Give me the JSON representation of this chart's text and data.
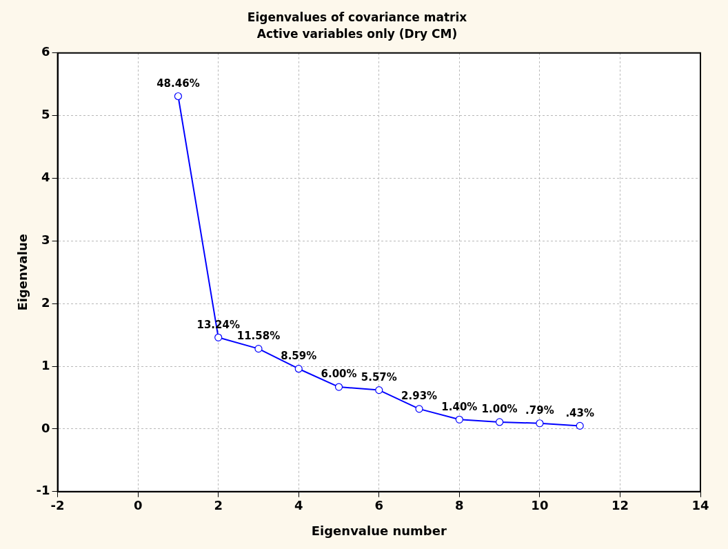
{
  "chart_data": {
    "type": "line",
    "title": "Eigenvalues of covariance matrix",
    "subtitle": "Active variables only (Dry CM)",
    "xlabel": "Eigenvalue number",
    "ylabel": "Eigenvalue",
    "x": [
      1,
      2,
      3,
      4,
      5,
      6,
      7,
      8,
      9,
      10,
      11
    ],
    "series": [
      {
        "color": "#0000ff",
        "values": [
          5.31,
          1.46,
          1.28,
          0.96,
          0.67,
          0.62,
          0.32,
          0.15,
          0.11,
          0.09,
          0.05
        ]
      }
    ],
    "annotations": [
      {
        "text": "48.46%",
        "x": 1,
        "y": 5.31
      },
      {
        "text": "13.24%",
        "x": 2,
        "y": 1.46
      },
      {
        "text": "11.58%",
        "x": 3,
        "y": 1.28
      },
      {
        "text": "8.59%",
        "x": 4,
        "y": 0.96
      },
      {
        "text": "6.00%",
        "x": 5,
        "y": 0.67
      },
      {
        "text": "5.57%",
        "x": 6,
        "y": 0.62
      },
      {
        "text": "2.93%",
        "x": 7,
        "y": 0.32
      },
      {
        "text": "1.40%",
        "x": 8,
        "y": 0.15
      },
      {
        "text": "1.00%",
        "x": 9,
        "y": 0.11
      },
      {
        "text": ".79%",
        "x": 10,
        "y": 0.09
      },
      {
        "text": ".43%",
        "x": 11,
        "y": 0.05
      }
    ],
    "xlim": [
      -2,
      14
    ],
    "xticks": [
      -2,
      0,
      2,
      4,
      6,
      8,
      10,
      12,
      14
    ],
    "ylim": [
      -1,
      6
    ],
    "yticks": [
      -1,
      0,
      1,
      2,
      3,
      4,
      5,
      6
    ],
    "grid": true,
    "legend": false,
    "marker": "circle",
    "line_style": "solid"
  }
}
